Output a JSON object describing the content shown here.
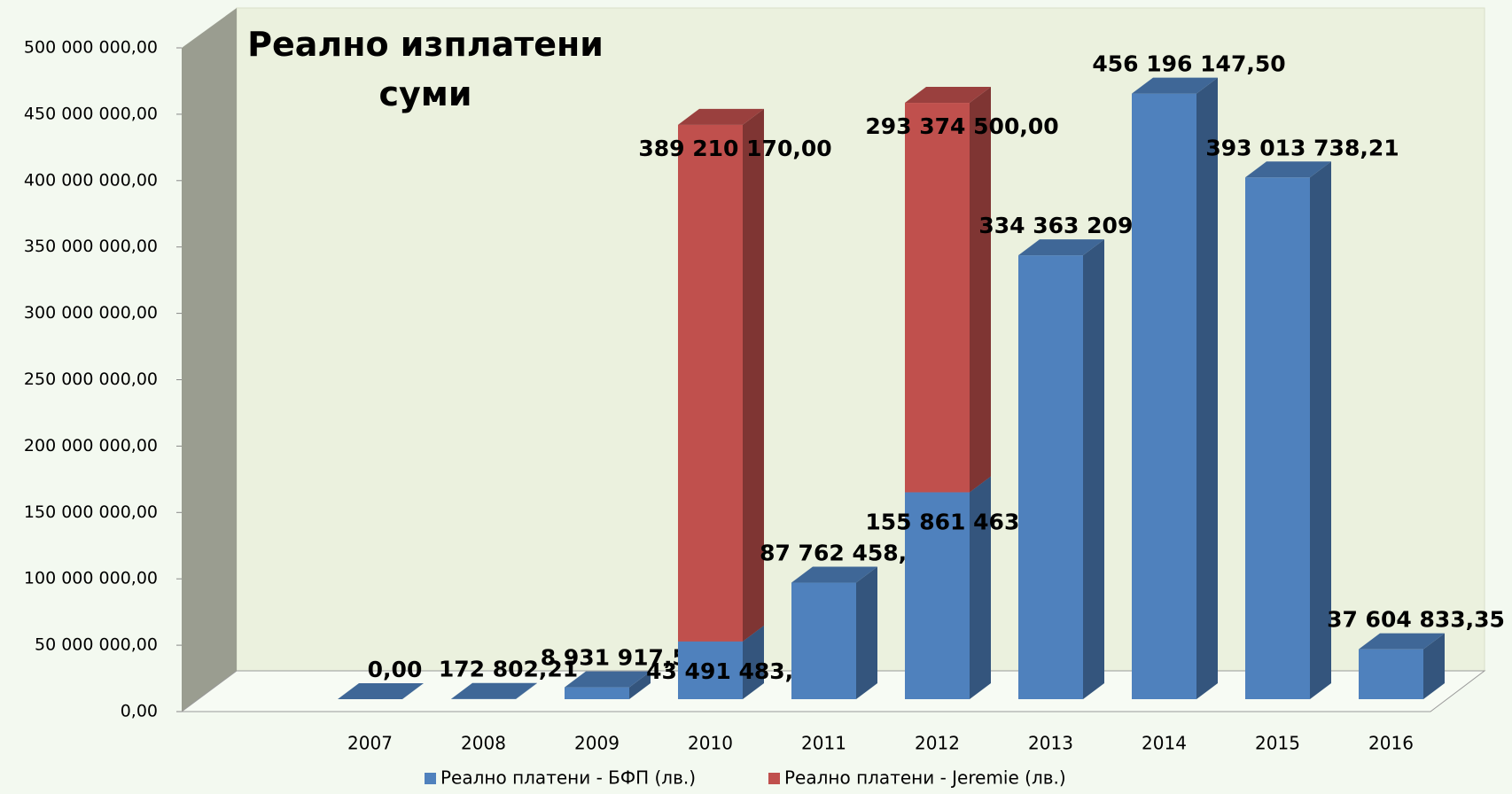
{
  "chart_data": {
    "type": "bar3d_stacked",
    "title": "Реално изплатени суми",
    "categories": [
      "2007",
      "2008",
      "2009",
      "2010",
      "2011",
      "2012",
      "2013",
      "2014",
      "2015",
      "2016"
    ],
    "series": [
      {
        "name": "Реално платени  - БФП (лв.)",
        "color": "#4f81bd",
        "values": [
          0,
          172802.21,
          8931917.52,
          43491483.15,
          87762458.37,
          155861463.0,
          334363209.18,
          456196147.5,
          393013738.21,
          37604833.35
        ],
        "value_labels": [
          "0,00",
          "172 802,21",
          "8 931 917,52",
          "43 491 483,15",
          "87 762 458,37",
          "155 861 463,00",
          "334 363 209,18",
          "456 196 147,50",
          "393 013 738,21",
          "37 604 833,35"
        ]
      },
      {
        "name": "Реално платени  - Jeremie (лв.)",
        "color": "#c0504d",
        "values": [
          null,
          null,
          null,
          389210170.0,
          null,
          293374500.0,
          null,
          null,
          null,
          null
        ],
        "value_labels": [
          null,
          null,
          null,
          "389 210 170,00",
          null,
          "293 374 500,00",
          null,
          null,
          null,
          null
        ]
      }
    ],
    "ylim": [
      0,
      500000000
    ],
    "yticks": [
      {
        "value": 0,
        "label": "0,00"
      },
      {
        "value": 50000000,
        "label": "50 000 000,00"
      },
      {
        "value": 100000000,
        "label": "100 000 000,00"
      },
      {
        "value": 150000000,
        "label": "150 000 000,00"
      },
      {
        "value": 200000000,
        "label": "200 000 000,00"
      },
      {
        "value": 250000000,
        "label": "250 000 000,00"
      },
      {
        "value": 300000000,
        "label": "300 000 000,00"
      },
      {
        "value": 350000000,
        "label": "350 000 000,00"
      },
      {
        "value": 400000000,
        "label": "400 000 000,00"
      },
      {
        "value": 450000000,
        "label": "450 000 000,00"
      },
      {
        "value": 500000000,
        "label": "500 000 000,00"
      }
    ],
    "legend": "bottom"
  }
}
